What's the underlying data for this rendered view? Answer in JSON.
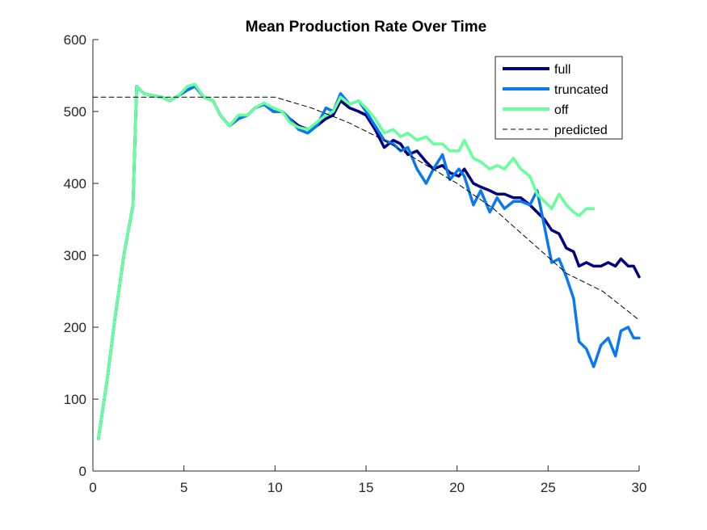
{
  "chart_data": {
    "type": "line",
    "title": "Mean Production Rate Over Time",
    "xlabel": "",
    "ylabel": "",
    "xlim": [
      0,
      30
    ],
    "ylim": [
      0,
      600
    ],
    "xticks": [
      0,
      5,
      10,
      15,
      20,
      25,
      30
    ],
    "yticks": [
      0,
      100,
      200,
      300,
      400,
      500,
      600
    ],
    "grid": false,
    "legend_position": "top-right",
    "series": [
      {
        "name": "full",
        "color": "#000080",
        "style": "solid",
        "x": [
          0.3,
          0.8,
          1.2,
          1.7,
          2.2,
          2.4,
          2.8,
          3.3,
          3.8,
          4.2,
          4.7,
          5.2,
          5.6,
          6.1,
          6.6,
          7.0,
          7.5,
          8.0,
          8.5,
          8.9,
          9.4,
          9.9,
          10.4,
          10.8,
          11.3,
          11.8,
          12.3,
          12.8,
          13.2,
          13.6,
          14.1,
          14.6,
          15.0,
          15.5,
          16.0,
          16.5,
          16.9,
          17.3,
          17.8,
          18.3,
          18.7,
          19.2,
          19.6,
          20.1,
          20.4,
          20.9,
          21.3,
          21.8,
          22.2,
          22.6,
          23.1,
          23.5,
          24.0,
          24.4,
          24.8,
          25.2,
          25.6,
          26.0,
          26.4,
          26.7,
          27.1,
          27.5,
          27.9,
          28.3,
          28.7,
          29.0,
          29.4,
          29.7,
          30.0
        ],
        "values": [
          45,
          130,
          210,
          300,
          370,
          535,
          525,
          522,
          520,
          515,
          522,
          530,
          535,
          520,
          515,
          495,
          480,
          490,
          495,
          505,
          510,
          500,
          500,
          490,
          480,
          475,
          480,
          490,
          495,
          515,
          505,
          500,
          495,
          475,
          450,
          460,
          455,
          440,
          445,
          430,
          420,
          425,
          415,
          410,
          420,
          400,
          395,
          390,
          385,
          385,
          380,
          380,
          370,
          360,
          350,
          335,
          330,
          310,
          305,
          285,
          290,
          285,
          285,
          290,
          285,
          295,
          285,
          285,
          270
        ]
      },
      {
        "name": "truncated",
        "color": "#0A78F0",
        "style": "solid",
        "x": [
          0.3,
          0.8,
          1.2,
          1.7,
          2.2,
          2.4,
          2.8,
          3.3,
          3.8,
          4.2,
          4.7,
          5.2,
          5.6,
          6.1,
          6.6,
          7.0,
          7.5,
          8.0,
          8.5,
          8.9,
          9.4,
          9.9,
          10.4,
          10.8,
          11.3,
          11.8,
          12.3,
          12.8,
          13.2,
          13.6,
          14.1,
          14.6,
          15.0,
          15.5,
          16.0,
          16.5,
          16.9,
          17.3,
          17.8,
          18.3,
          18.7,
          19.2,
          19.6,
          20.1,
          20.4,
          20.9,
          21.3,
          21.8,
          22.2,
          22.6,
          23.1,
          23.5,
          24.0,
          24.4,
          24.8,
          25.2,
          25.6,
          26.0,
          26.4,
          26.7,
          27.1,
          27.5,
          27.9,
          28.3,
          28.7,
          29.0,
          29.4,
          29.7,
          30.0
        ],
        "values": [
          45,
          130,
          210,
          300,
          370,
          535,
          525,
          522,
          520,
          515,
          522,
          530,
          535,
          520,
          515,
          495,
          480,
          490,
          495,
          505,
          510,
          500,
          500,
          490,
          475,
          470,
          480,
          505,
          500,
          525,
          510,
          515,
          500,
          480,
          460,
          455,
          445,
          450,
          420,
          400,
          420,
          440,
          405,
          420,
          410,
          370,
          390,
          360,
          380,
          365,
          375,
          375,
          370,
          390,
          340,
          290,
          295,
          270,
          240,
          180,
          170,
          145,
          175,
          185,
          160,
          195,
          200,
          185,
          185
        ]
      },
      {
        "name": "off",
        "color": "#66FF99",
        "style": "solid",
        "x": [
          0.3,
          0.8,
          1.2,
          1.7,
          2.2,
          2.4,
          2.8,
          3.3,
          3.8,
          4.2,
          4.7,
          5.2,
          5.6,
          6.1,
          6.6,
          7.0,
          7.5,
          8.0,
          8.5,
          8.9,
          9.4,
          9.9,
          10.4,
          10.8,
          11.3,
          11.8,
          12.3,
          12.8,
          13.2,
          13.6,
          14.1,
          14.6,
          15.0,
          15.5,
          16.0,
          16.5,
          16.9,
          17.3,
          17.8,
          18.3,
          18.7,
          19.2,
          19.6,
          20.1,
          20.4,
          20.9,
          21.3,
          21.8,
          22.2,
          22.6,
          23.1,
          23.5,
          24.0,
          24.4,
          24.8,
          25.2,
          25.6,
          26.0,
          26.4,
          26.7,
          27.1,
          27.5
        ],
        "values": [
          45,
          130,
          210,
          300,
          370,
          535,
          525,
          522,
          520,
          515,
          522,
          535,
          538,
          520,
          515,
          495,
          480,
          495,
          495,
          505,
          512,
          505,
          500,
          485,
          478,
          475,
          485,
          495,
          500,
          520,
          510,
          515,
          505,
          490,
          470,
          475,
          465,
          470,
          460,
          465,
          455,
          455,
          445,
          445,
          460,
          435,
          430,
          420,
          425,
          420,
          435,
          420,
          410,
          385,
          375,
          365,
          385,
          370,
          360,
          355,
          365,
          365
        ]
      },
      {
        "name": "predicted",
        "color": "#000000",
        "style": "dashed",
        "x": [
          0,
          10,
          12,
          14,
          16,
          18,
          20,
          22,
          24,
          26,
          28,
          30
        ],
        "values": [
          520,
          520,
          505,
          485,
          460,
          430,
          400,
          365,
          320,
          275,
          250,
          210
        ]
      }
    ]
  }
}
